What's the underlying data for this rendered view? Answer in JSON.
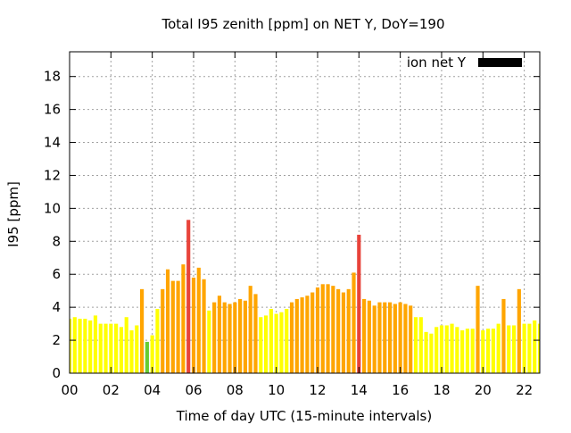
{
  "chart_data": {
    "type": "bar",
    "title": "Total I95 zenith [ppm] on NET Y, DoY=190",
    "xlabel": "Time of day UTC (15-minute intervals)",
    "ylabel": "I95 [ppm]",
    "xlim": [
      0,
      22.75
    ],
    "ylim": [
      0,
      19.5
    ],
    "x_ticks": [
      0,
      2,
      4,
      6,
      8,
      10,
      12,
      14,
      16,
      18,
      20,
      22
    ],
    "x_tick_labels": [
      "00",
      "02",
      "04",
      "06",
      "08",
      "10",
      "12",
      "14",
      "16",
      "18",
      "20",
      "22"
    ],
    "y_ticks": [
      0,
      2,
      4,
      6,
      8,
      10,
      12,
      14,
      16,
      18
    ],
    "y_tick_labels": [
      "0",
      "2",
      "4",
      "6",
      "8",
      "10",
      "12",
      "14",
      "16",
      "18"
    ],
    "grid": true,
    "legend_position": "top-right",
    "legend": [
      {
        "label": "ion net Y",
        "color": "#000000"
      }
    ],
    "bar_width_hours": 0.18,
    "color_scale": [
      {
        "max": 2.0,
        "color": "#66cc33"
      },
      {
        "max": 3.9,
        "color": "#ffff00"
      },
      {
        "max": 7.0,
        "color": "#ffa500"
      },
      {
        "max": 99,
        "color": "#e8433a"
      }
    ],
    "x": [
      0.0,
      0.25,
      0.5,
      0.75,
      1.0,
      1.25,
      1.5,
      1.75,
      2.0,
      2.25,
      2.5,
      2.75,
      3.0,
      3.25,
      3.5,
      3.75,
      4.0,
      4.25,
      4.5,
      4.75,
      5.0,
      5.25,
      5.5,
      5.75,
      6.0,
      6.25,
      6.5,
      6.75,
      7.0,
      7.25,
      7.5,
      7.75,
      8.0,
      8.25,
      8.5,
      8.75,
      9.0,
      9.25,
      9.5,
      9.75,
      10.0,
      10.25,
      10.5,
      10.75,
      11.0,
      11.25,
      11.5,
      11.75,
      12.0,
      12.25,
      12.5,
      12.75,
      13.0,
      13.25,
      13.5,
      13.75,
      14.0,
      14.25,
      14.5,
      14.75,
      15.0,
      15.25,
      15.5,
      15.75,
      16.0,
      16.25,
      16.5,
      16.75,
      17.0,
      17.25,
      17.5,
      17.75,
      18.0,
      18.25,
      18.5,
      18.75,
      19.0,
      19.25,
      19.5,
      19.75,
      20.0,
      20.25,
      20.5,
      20.75,
      21.0,
      21.25,
      21.5,
      21.75,
      22.0,
      22.25,
      22.5,
      22.75
    ],
    "values": [
      3.3,
      3.4,
      3.3,
      3.3,
      3.2,
      3.5,
      3.0,
      3.0,
      3.0,
      3.0,
      2.8,
      3.4,
      2.6,
      2.9,
      5.1,
      1.9,
      2.3,
      3.9,
      5.1,
      6.3,
      5.6,
      5.6,
      6.6,
      9.3,
      5.8,
      6.4,
      5.7,
      3.8,
      4.3,
      4.7,
      4.3,
      4.2,
      4.3,
      4.5,
      4.4,
      5.3,
      4.8,
      3.4,
      3.5,
      3.9,
      3.6,
      3.7,
      3.9,
      4.3,
      4.5,
      4.6,
      4.7,
      4.9,
      5.2,
      5.4,
      5.4,
      5.3,
      5.1,
      4.9,
      5.1,
      6.1,
      8.4,
      4.5,
      4.4,
      4.1,
      4.3,
      4.3,
      4.3,
      4.2,
      4.3,
      4.2,
      4.1,
      3.4,
      3.4,
      2.5,
      2.4,
      2.8,
      2.9,
      2.9,
      3.0,
      2.8,
      2.6,
      2.7,
      2.7,
      5.3,
      2.6,
      2.7,
      2.7,
      3.0,
      4.5,
      2.9,
      2.9,
      5.1,
      3.0,
      3.0,
      3.2,
      3.0
    ]
  }
}
